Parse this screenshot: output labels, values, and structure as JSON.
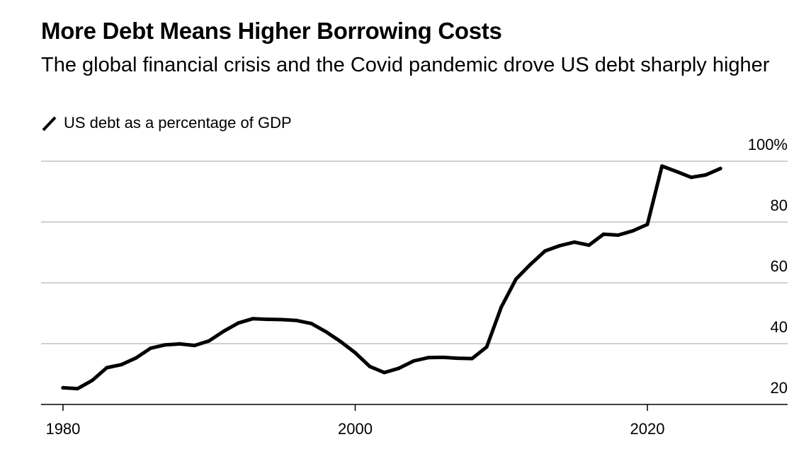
{
  "title": "More Debt Means Higher Borrowing Costs",
  "subtitle": "The global financial crisis and the Covid pandemic drove US debt sharply higher",
  "legend": {
    "label": "US debt as a percentage of GDP",
    "icon": "diagonal-line-swatch"
  },
  "colors": {
    "series": "#000000",
    "grid": "#d0d0d0",
    "axis": "#000000",
    "background": "#ffffff"
  },
  "chart_data": {
    "type": "line",
    "title": "More Debt Means Higher Borrowing Costs",
    "subtitle": "The global financial crisis and the Covid pandemic drove US debt sharply higher",
    "xlabel": "",
    "ylabel": "",
    "xlim": [
      1978.5,
      2029.6
    ],
    "ylim": [
      20,
      100
    ],
    "grid": "horizontal",
    "legend_placement": "top-left",
    "y_ticks": [
      {
        "value": 20,
        "label": "20"
      },
      {
        "value": 40,
        "label": "40"
      },
      {
        "value": 60,
        "label": "60"
      },
      {
        "value": 80,
        "label": "80"
      },
      {
        "value": 100,
        "label": "100%"
      }
    ],
    "x_ticks": [
      {
        "value": 1980,
        "label": "1980"
      },
      {
        "value": 2000,
        "label": "2000"
      },
      {
        "value": 2020,
        "label": "2020"
      }
    ],
    "series": [
      {
        "name": "US debt as a percentage of GDP",
        "x": [
          1980,
          1981,
          1982,
          1983,
          1984,
          1985,
          1986,
          1987,
          1988,
          1989,
          1990,
          1991,
          1992,
          1993,
          1994,
          1995,
          1996,
          1997,
          1998,
          1999,
          2000,
          2001,
          2002,
          2003,
          2004,
          2005,
          2006,
          2007,
          2008,
          2009,
          2010,
          2011,
          2012,
          2013,
          2014,
          2015,
          2016,
          2017,
          2018,
          2019,
          2020,
          2021,
          2022,
          2023,
          2024,
          2025
        ],
        "values": [
          25.5,
          25.2,
          27.9,
          32.1,
          33.1,
          35.3,
          38.5,
          39.6,
          39.9,
          39.4,
          40.9,
          44.1,
          46.8,
          48.2,
          48.0,
          47.9,
          47.6,
          46.6,
          43.9,
          40.7,
          37.0,
          32.5,
          30.5,
          31.9,
          34.3,
          35.4,
          35.5,
          35.2,
          35.1,
          38.9,
          52.0,
          61.2,
          66.1,
          70.5,
          72.2,
          73.4,
          72.4,
          76.0,
          75.7,
          77.1,
          79.2,
          98.4,
          96.6,
          94.7,
          95.5,
          97.6
        ]
      }
    ]
  }
}
